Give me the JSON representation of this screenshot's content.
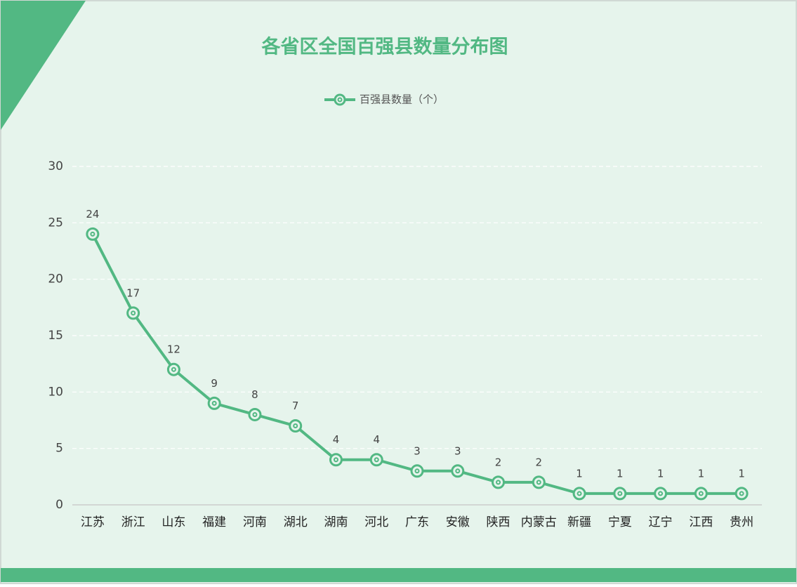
{
  "chart_data": {
    "type": "line",
    "title": "各省区全国百强县数量分布图",
    "categories": [
      "江苏",
      "浙江",
      "山东",
      "福建",
      "河南",
      "湖北",
      "湖南",
      "河北",
      "广东",
      "安徽",
      "陕西",
      "内蒙古",
      "新疆",
      "宁夏",
      "辽宁",
      "江西",
      "贵州"
    ],
    "series": [
      {
        "name": "百强县数量（个）",
        "color": "#52b883",
        "values": [
          24,
          17,
          12,
          9,
          8,
          7,
          4,
          4,
          3,
          3,
          2,
          2,
          1,
          1,
          1,
          1,
          1
        ]
      }
    ],
    "ylim": [
      0,
      30
    ],
    "yticks": [
      0,
      5,
      10,
      15,
      20,
      25,
      30
    ],
    "grid": true
  }
}
